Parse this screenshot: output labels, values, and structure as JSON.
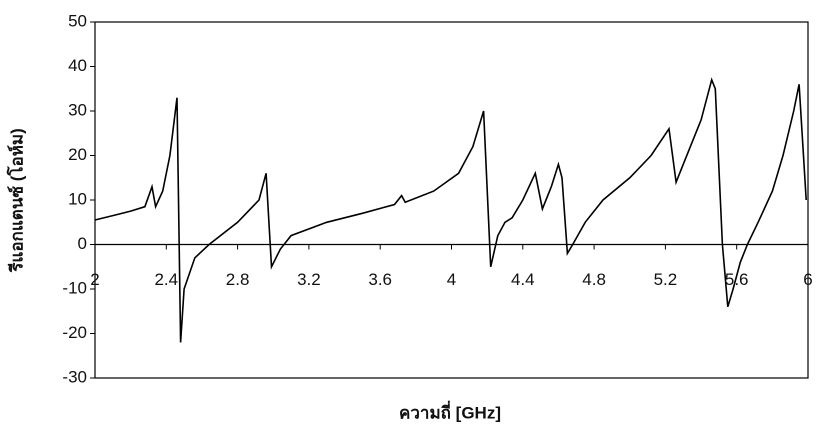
{
  "chart_data": {
    "type": "line",
    "x_label": "ความถี่ [GHz]",
    "y_label": "รีแอกแตนซ์ (โอห์ม)",
    "x": [
      2,
      2.1,
      2.2,
      2.28,
      2.32,
      2.34,
      2.38,
      2.42,
      2.46,
      2.48,
      2.5,
      2.56,
      2.64,
      2.8,
      2.92,
      2.96,
      2.99,
      3.04,
      3.1,
      3.3,
      3.5,
      3.68,
      3.72,
      3.74,
      3.9,
      4.04,
      4.12,
      4.18,
      4.22,
      4.26,
      4.3,
      4.34,
      4.4,
      4.47,
      4.51,
      4.56,
      4.6,
      4.62,
      4.65,
      4.68,
      4.75,
      4.85,
      5.0,
      5.12,
      5.22,
      5.26,
      5.3,
      5.4,
      5.46,
      5.48,
      5.52,
      5.55,
      5.58,
      5.62,
      5.66,
      5.72,
      5.8,
      5.86,
      5.92,
      5.95,
      5.99
    ],
    "series": [
      {
        "color": "#000000",
        "values": [
          5.5,
          6.5,
          7.5,
          8.5,
          13,
          8.5,
          12,
          20,
          33,
          -22,
          -10,
          -3,
          0,
          5,
          10,
          16,
          -5,
          -1,
          2,
          5,
          7,
          9,
          11,
          9.5,
          12,
          16,
          22,
          30,
          -5,
          2,
          5,
          6,
          10,
          16,
          8,
          13,
          18,
          15,
          -2,
          0,
          5,
          10,
          15,
          20,
          26,
          14,
          18,
          28,
          37,
          35,
          0,
          -14,
          -10,
          -4,
          0,
          5,
          12,
          20,
          30,
          36,
          10
        ]
      }
    ],
    "xlim": [
      2,
      6
    ],
    "xticks": [
      2,
      2.4,
      2.8,
      3.2,
      3.6,
      4,
      4.4,
      4.8,
      5.2,
      5.6,
      6
    ],
    "ylim": [
      -30,
      50
    ],
    "yticks": [
      -30,
      -20,
      -10,
      0,
      10,
      20,
      30,
      40,
      50
    ]
  }
}
